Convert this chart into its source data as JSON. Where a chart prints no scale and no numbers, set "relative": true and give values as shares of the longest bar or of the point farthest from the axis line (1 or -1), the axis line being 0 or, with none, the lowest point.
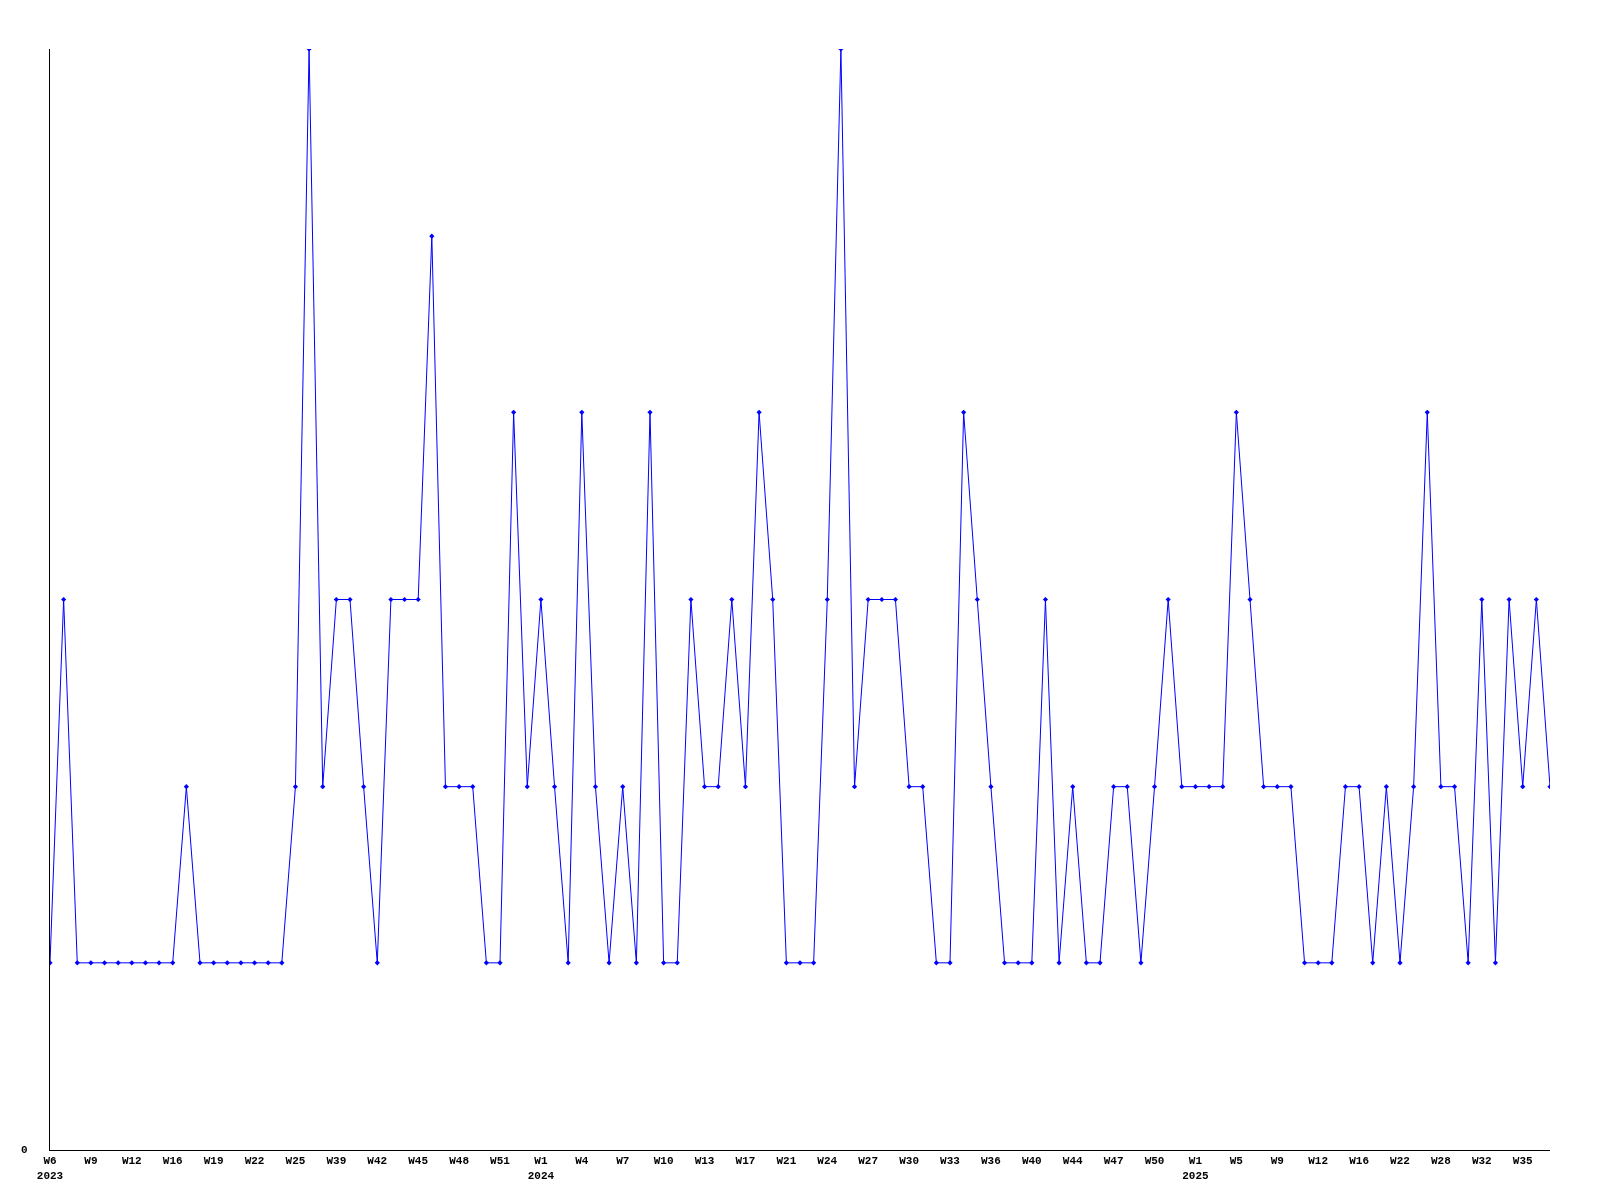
{
  "chart_data": {
    "type": "line",
    "relative": true,
    "marker": "diamond",
    "color": "#0000ff",
    "categories": [
      "W6\n2023",
      null,
      null,
      "W9",
      null,
      null,
      "W12",
      null,
      null,
      "W16",
      null,
      null,
      "W19",
      null,
      null,
      "W22",
      null,
      null,
      "W25",
      null,
      null,
      "W39",
      null,
      null,
      "W42",
      null,
      null,
      "W45",
      null,
      null,
      "W48",
      null,
      null,
      "W51",
      null,
      null,
      "W1\n2024",
      null,
      null,
      "W4",
      null,
      null,
      "W7",
      null,
      null,
      "W10",
      null,
      null,
      "W13",
      null,
      null,
      "W17",
      null,
      null,
      "W21",
      null,
      null,
      "W24",
      null,
      null,
      "W27",
      null,
      null,
      "W30",
      null,
      null,
      "W33",
      null,
      null,
      "W36",
      null,
      null,
      "W40",
      null,
      null,
      "W44",
      null,
      null,
      "W47",
      null,
      null,
      "W50",
      null,
      null,
      "W1\n2025",
      null,
      null,
      "W5",
      null,
      null,
      "W9",
      null,
      null,
      "W12",
      null,
      null,
      "W16",
      null,
      null,
      "W22",
      null,
      null,
      "W28",
      null,
      null,
      "W32",
      null,
      null,
      "W35",
      null,
      null
    ],
    "values": [
      0.17,
      0.5,
      0.17,
      0.17,
      0.17,
      0.17,
      0.17,
      0.17,
      0.17,
      0.17,
      0.33,
      0.17,
      0.17,
      0.17,
      0.17,
      0.17,
      0.17,
      0.17,
      0.33,
      1,
      0.33,
      0.5,
      0.5,
      0.33,
      0.17,
      0.5,
      0.5,
      0.5,
      0.83,
      0.33,
      0.33,
      0.33,
      0.17,
      0.17,
      0.67,
      0.33,
      0.5,
      0.33,
      0.17,
      0.67,
      0.33,
      0.17,
      0.33,
      0.17,
      0.67,
      0.17,
      0.17,
      0.5,
      0.33,
      0.33,
      0.5,
      0.33,
      0.67,
      0.5,
      0.17,
      0.17,
      0.17,
      0.5,
      1,
      0.33,
      0.5,
      0.5,
      0.5,
      0.33,
      0.33,
      0.17,
      0.17,
      0.67,
      0.5,
      0.33,
      0.17,
      0.17,
      0.17,
      0.5,
      0.17,
      0.33,
      0.17,
      0.17,
      0.33,
      0.33,
      0.17,
      0.33,
      0.5,
      0.33,
      0.33,
      0.33,
      0.33,
      0.67,
      0.5,
      0.33,
      0.33,
      0.33,
      0.17,
      0.17,
      0.17,
      0.33,
      0.33,
      0.17,
      0.33,
      0.17,
      0.33,
      0.67,
      0.33,
      0.33,
      0.17,
      0.5,
      0.17,
      0.5,
      0.33,
      0.5,
      0.33
    ],
    "annotations": [
      "0"
    ]
  }
}
